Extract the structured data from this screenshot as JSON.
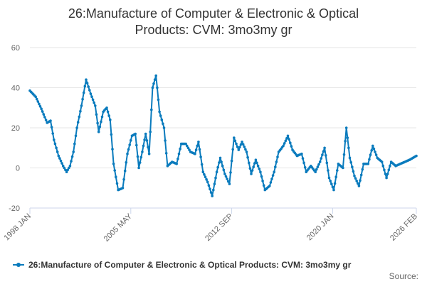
{
  "chart_data": {
    "type": "line",
    "title_lines": [
      "26:Manufacture of Computer & Electronic & Optical",
      "Products: CVM: 3mo3my gr"
    ],
    "xlabel": "",
    "ylabel": "",
    "ylim": [
      -20,
      60
    ],
    "yticks": [
      "60",
      "40",
      "20",
      "0",
      "-20"
    ],
    "ytick_values": [
      60,
      40,
      20,
      0,
      -20
    ],
    "xlim_months": [
      "1998-01",
      "2026-02"
    ],
    "xticks": [
      {
        "label": "1998 JAN",
        "date": "1998-01"
      },
      {
        "label": "2005 MAY",
        "date": "2005-05"
      },
      {
        "label": "2012 SEP",
        "date": "2012-09"
      },
      {
        "label": "2020 JAN",
        "date": "2020-01"
      },
      {
        "label": "2026 FEB",
        "date": "2026-02"
      }
    ],
    "grid": true,
    "legend_position": "bottom-left",
    "series": [
      {
        "name": "26:Manufacture of Computer & Electronic & Optical Products: CVM: 3mo3my gr",
        "color": "#0a7bbd",
        "points": [
          [
            "1998-01",
            38.5
          ],
          [
            "1998-06",
            35.5
          ],
          [
            "1998-11",
            29.5
          ],
          [
            "1999-04",
            22.5
          ],
          [
            "1999-07",
            23.5
          ],
          [
            "1999-10",
            14
          ],
          [
            "2000-02",
            6
          ],
          [
            "2000-06",
            1
          ],
          [
            "2000-09",
            -2
          ],
          [
            "2000-12",
            1
          ],
          [
            "2001-03",
            8
          ],
          [
            "2001-06",
            20
          ],
          [
            "2001-10",
            31
          ],
          [
            "2002-02",
            44
          ],
          [
            "2002-06",
            37
          ],
          [
            "2002-10",
            31
          ],
          [
            "2003-01",
            18
          ],
          [
            "2003-05",
            28
          ],
          [
            "2003-08",
            30
          ],
          [
            "2003-11",
            24
          ],
          [
            "2004-02",
            2
          ],
          [
            "2004-06",
            -11
          ],
          [
            "2004-10",
            -10
          ],
          [
            "2005-02",
            7
          ],
          [
            "2005-06",
            16
          ],
          [
            "2005-09",
            17
          ],
          [
            "2005-12",
            0
          ],
          [
            "2006-03",
            8
          ],
          [
            "2006-06",
            17
          ],
          [
            "2006-09",
            7
          ],
          [
            "2006-12",
            40
          ],
          [
            "2007-03",
            46
          ],
          [
            "2007-06",
            28
          ],
          [
            "2007-10",
            20
          ],
          [
            "2008-01",
            1
          ],
          [
            "2008-05",
            3
          ],
          [
            "2008-09",
            2
          ],
          [
            "2009-01",
            12
          ],
          [
            "2009-05",
            12
          ],
          [
            "2009-09",
            8
          ],
          [
            "2010-01",
            7
          ],
          [
            "2010-04",
            13
          ],
          [
            "2010-08",
            -2
          ],
          [
            "2010-12",
            -7
          ],
          [
            "2011-04",
            -14
          ],
          [
            "2011-08",
            -2
          ],
          [
            "2011-11",
            5
          ],
          [
            "2012-03",
            -3
          ],
          [
            "2012-07",
            -8
          ],
          [
            "2012-11",
            15
          ],
          [
            "2013-03",
            9
          ],
          [
            "2013-06",
            13
          ],
          [
            "2013-10",
            8
          ],
          [
            "2014-02",
            -3
          ],
          [
            "2014-06",
            4
          ],
          [
            "2014-10",
            -2
          ],
          [
            "2015-02",
            -11
          ],
          [
            "2015-06",
            -9
          ],
          [
            "2015-10",
            -2
          ],
          [
            "2016-02",
            8
          ],
          [
            "2016-06",
            11
          ],
          [
            "2016-10",
            16
          ],
          [
            "2017-02",
            9
          ],
          [
            "2017-06",
            6
          ],
          [
            "2017-10",
            7
          ],
          [
            "2018-02",
            -2
          ],
          [
            "2018-06",
            1
          ],
          [
            "2018-10",
            -2
          ],
          [
            "2019-02",
            3
          ],
          [
            "2019-06",
            10
          ],
          [
            "2019-10",
            -5
          ],
          [
            "2020-02",
            -11
          ],
          [
            "2020-06",
            2
          ],
          [
            "2020-10",
            0
          ],
          [
            "2021-01",
            20
          ],
          [
            "2021-04",
            5
          ],
          [
            "2021-08",
            -4
          ],
          [
            "2021-12",
            -9
          ],
          [
            "2022-04",
            2
          ],
          [
            "2022-08",
            2
          ],
          [
            "2022-12",
            11
          ],
          [
            "2023-04",
            5
          ],
          [
            "2023-08",
            3
          ],
          [
            "2023-12",
            -5
          ],
          [
            "2024-04",
            3
          ],
          [
            "2024-08",
            1
          ],
          [
            "2024-12",
            2
          ],
          [
            "2025-04",
            3
          ],
          [
            "2025-08",
            4
          ],
          [
            "2026-02",
            6
          ]
        ]
      }
    ],
    "source_label": "Source:"
  }
}
